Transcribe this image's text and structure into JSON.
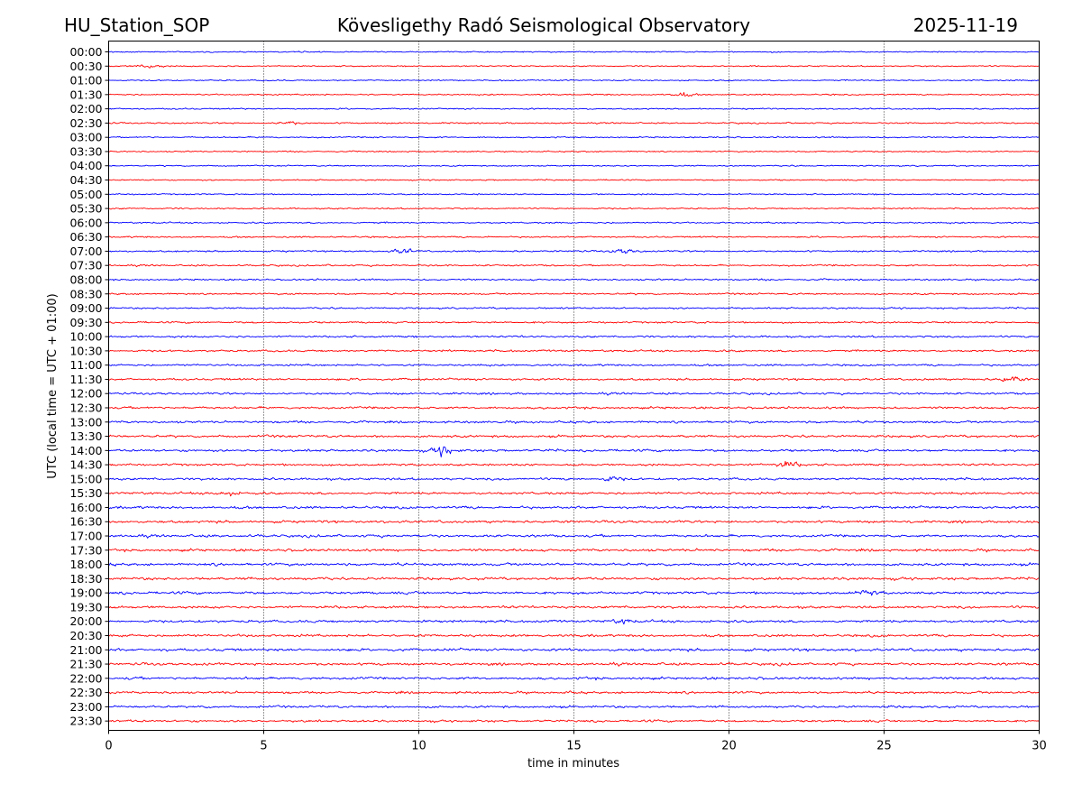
{
  "chart_data": {
    "type": "line",
    "header": {
      "station": "HU_Station_SOP",
      "title": "Kövesligethy Radó Seismological Observatory",
      "date": "2025-11-19"
    },
    "xlabel": "time in minutes",
    "ylabel": "UTC (local time = UTC + 01:00)",
    "xlim": [
      0,
      30
    ],
    "x_ticks": [
      "0",
      "5",
      "10",
      "15",
      "20",
      "25",
      "30"
    ],
    "x_grid": true,
    "trace_colors": [
      "#0000ff",
      "#ff0000"
    ],
    "row_labels": [
      "00:00",
      "00:30",
      "01:00",
      "01:30",
      "02:00",
      "02:30",
      "03:00",
      "03:30",
      "04:00",
      "04:30",
      "05:00",
      "05:30",
      "06:00",
      "06:30",
      "07:00",
      "07:30",
      "08:00",
      "08:30",
      "09:00",
      "09:30",
      "10:00",
      "10:30",
      "11:00",
      "11:30",
      "12:00",
      "12:30",
      "13:00",
      "13:30",
      "14:00",
      "14:30",
      "15:00",
      "15:30",
      "16:00",
      "16:30",
      "17:00",
      "17:30",
      "18:00",
      "18:30",
      "19:00",
      "19:30",
      "20:00",
      "20:30",
      "21:00",
      "21:30",
      "22:00",
      "22:30",
      "23:00",
      "23:30"
    ],
    "noise_amplitude": [
      0.9,
      0.9,
      0.9,
      1.0,
      1.0,
      1.0,
      1.0,
      0.9,
      0.9,
      0.9,
      1.0,
      1.0,
      1.1,
      1.1,
      1.2,
      1.2,
      1.2,
      1.2,
      1.2,
      1.3,
      1.4,
      1.4,
      1.4,
      1.5,
      1.5,
      1.6,
      1.6,
      1.7,
      1.7,
      1.6,
      1.7,
      1.7,
      1.8,
      1.8,
      1.8,
      1.8,
      1.9,
      1.9,
      1.9,
      1.8,
      1.8,
      1.8,
      1.9,
      1.8,
      1.8,
      1.6,
      1.6,
      1.6
    ],
    "bursts": [
      {
        "row": 1,
        "minute": 1.3,
        "amplitude": 3.0
      },
      {
        "row": 3,
        "minute": 18.5,
        "amplitude": 2.5
      },
      {
        "row": 5,
        "minute": 5.8,
        "amplitude": 2.0
      },
      {
        "row": 14,
        "minute": 9.5,
        "amplitude": 3.0
      },
      {
        "row": 14,
        "minute": 16.6,
        "amplitude": 3.0
      },
      {
        "row": 23,
        "minute": 29.1,
        "amplitude": 3.5
      },
      {
        "row": 28,
        "minute": 10.8,
        "amplitude": 6.0
      },
      {
        "row": 29,
        "minute": 21.9,
        "amplitude": 4.0
      },
      {
        "row": 30,
        "minute": 16.2,
        "amplitude": 2.5
      },
      {
        "row": 31,
        "minute": 3.8,
        "amplitude": 2.5
      },
      {
        "row": 38,
        "minute": 24.5,
        "amplitude": 2.5
      },
      {
        "row": 40,
        "minute": 16.6,
        "amplitude": 2.5
      }
    ]
  }
}
